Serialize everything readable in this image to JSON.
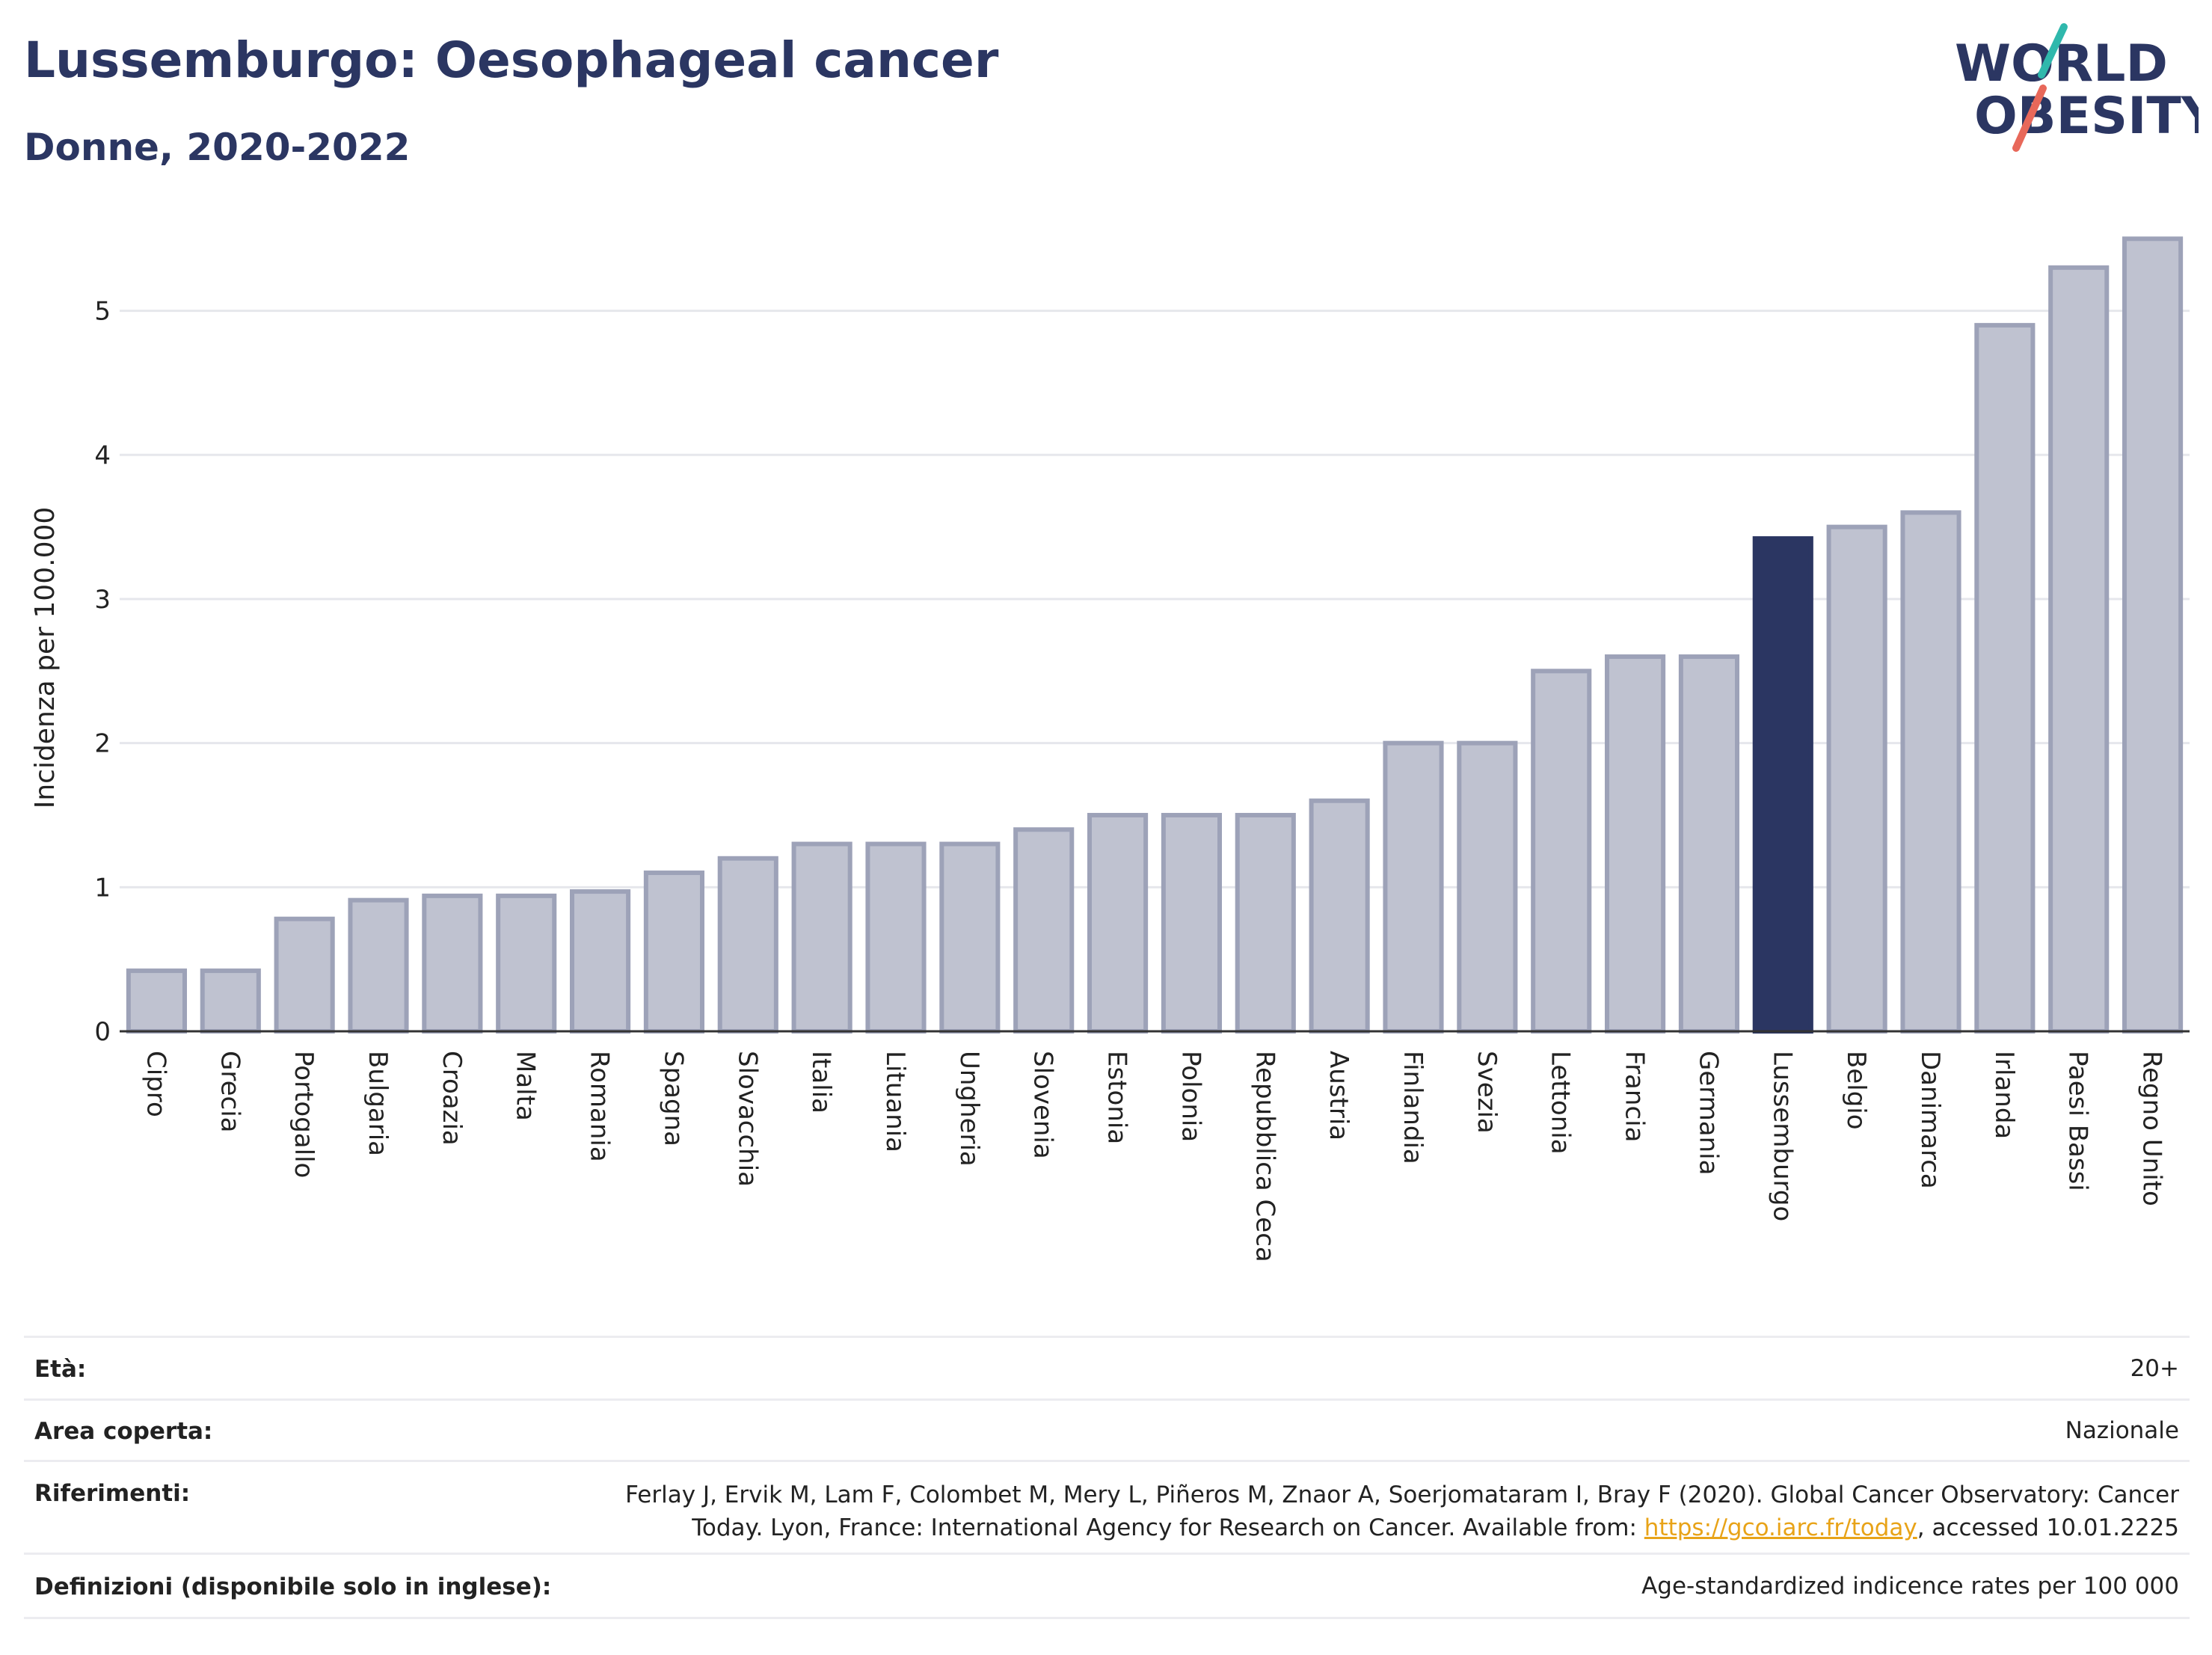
{
  "header": {
    "title": "Lussemburgo: Oesophageal cancer",
    "subtitle": "Donne, 2020-2022"
  },
  "logo": {
    "line1": "WORLD",
    "line2": "OBESITY",
    "accent_teal": "#2fb8ac",
    "accent_red": "#e8685a",
    "text_color": "#2b3662"
  },
  "chart_data": {
    "type": "bar",
    "title": "Lussemburgo: Oesophageal cancer",
    "subtitle": "Donne, 2020-2022",
    "xlabel": "",
    "ylabel": "Incidenza per 100.000",
    "ylim": [
      0,
      5.6
    ],
    "yticks": [
      0,
      1,
      2,
      3,
      4,
      5
    ],
    "grid": true,
    "highlight": "Lussemburgo",
    "colors": {
      "bar": "#bfc2d0",
      "bar_border": "#9da2b8",
      "highlight": "#2b3662"
    },
    "categories": [
      "Cipro",
      "Grecia",
      "Portogallo",
      "Bulgaria",
      "Croazia",
      "Malta",
      "Romania",
      "Spagna",
      "Slovacchia",
      "Italia",
      "Lituania",
      "Ungheria",
      "Slovenia",
      "Estonia",
      "Polonia",
      "Repubblica Ceca",
      "Austria",
      "Finlandia",
      "Svezia",
      "Lettonia",
      "Francia",
      "Germania",
      "Lussemburgo",
      "Belgio",
      "Danimarca",
      "Irlanda",
      "Paesi Bassi",
      "Regno Unito"
    ],
    "values": [
      0.42,
      0.42,
      0.78,
      0.91,
      0.94,
      0.94,
      0.97,
      1.1,
      1.2,
      1.3,
      1.3,
      1.3,
      1.4,
      1.5,
      1.5,
      1.5,
      1.6,
      2.0,
      2.0,
      2.5,
      2.6,
      2.6,
      3.42,
      3.5,
      3.6,
      4.9,
      5.3,
      5.5
    ]
  },
  "info": {
    "rows": [
      {
        "label": "Età:",
        "value": "20+"
      },
      {
        "label": "Area coperta:",
        "value": "Nazionale"
      },
      {
        "label": "Riferimenti:",
        "value_line1": "Ferlay J, Ervik M, Lam F, Colombet M, Mery L, Piñeros M, Znaor A, Soerjomataram I, Bray F (2020). Global Cancer Observatory: Cancer",
        "value_line2_pre": "Today. Lyon, France: International Agency for Research on Cancer. Available from: ",
        "link": "https://gco.iarc.fr/today",
        "value_line2_post": ", accessed 10.01.2225"
      },
      {
        "label": "Definizioni (disponibile solo in inglese):",
        "value": "Age-standardized indicence rates per 100 000"
      }
    ]
  }
}
